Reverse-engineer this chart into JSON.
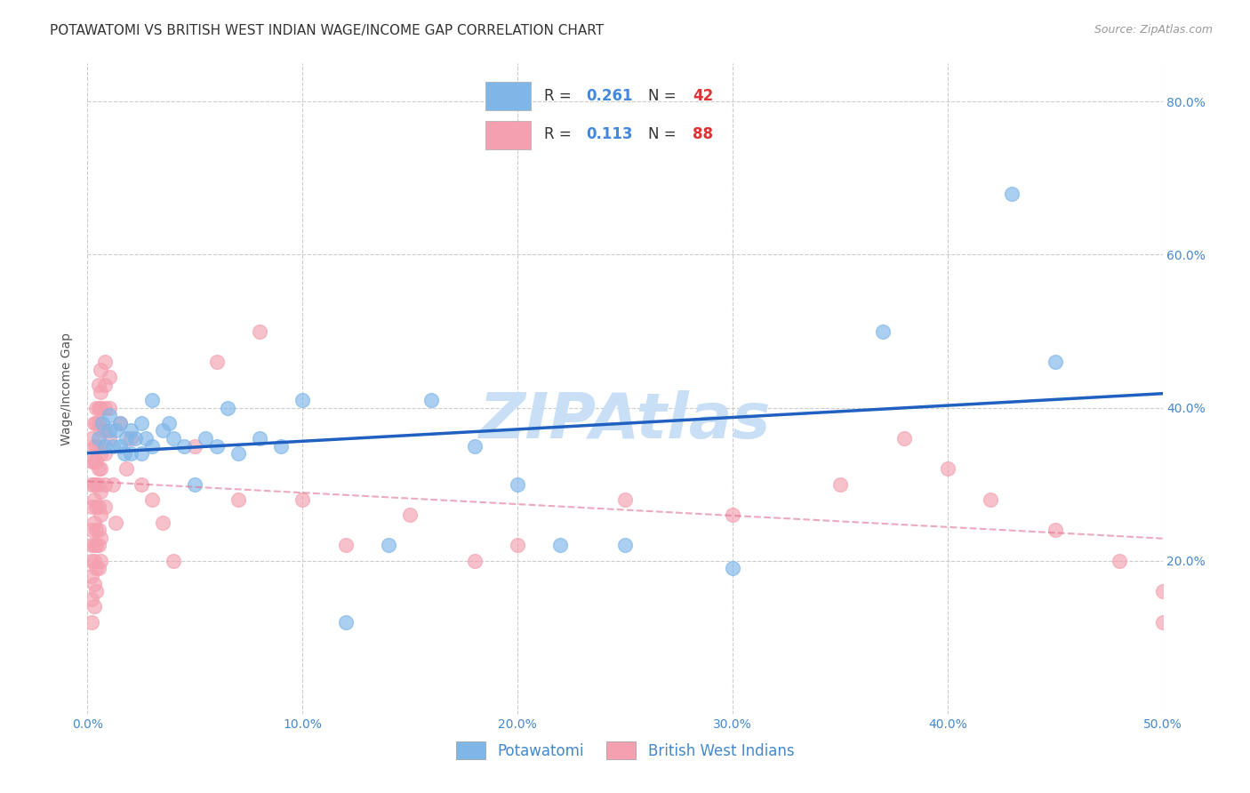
{
  "title": "POTAWATOMI VS BRITISH WEST INDIAN WAGE/INCOME GAP CORRELATION CHART",
  "source": "Source: ZipAtlas.com",
  "ylabel": "Wage/Income Gap",
  "xlim": [
    0.0,
    0.5
  ],
  "ylim": [
    0.0,
    0.85
  ],
  "xticks": [
    0.0,
    0.1,
    0.2,
    0.3,
    0.4,
    0.5
  ],
  "yticks": [
    0.2,
    0.4,
    0.6,
    0.8
  ],
  "potawatomi_R": 0.261,
  "potawatomi_N": 42,
  "bwi_R": 0.113,
  "bwi_N": 88,
  "potawatomi_color": "#7eb6e8",
  "bwi_color": "#f4a0b0",
  "potawatomi_line_color": "#2060c0",
  "bwi_line_color": "#e07090",
  "potawatomi_x": [
    0.005,
    0.007,
    0.008,
    0.01,
    0.01,
    0.012,
    0.013,
    0.015,
    0.015,
    0.017,
    0.018,
    0.02,
    0.02,
    0.022,
    0.025,
    0.025,
    0.027,
    0.03,
    0.03,
    0.035,
    0.038,
    0.04,
    0.045,
    0.05,
    0.055,
    0.06,
    0.065,
    0.07,
    0.08,
    0.09,
    0.1,
    0.12,
    0.14,
    0.16,
    0.18,
    0.2,
    0.22,
    0.25,
    0.3,
    0.37,
    0.43,
    0.45
  ],
  "potawatomi_y": [
    0.36,
    0.38,
    0.35,
    0.37,
    0.39,
    0.35,
    0.37,
    0.35,
    0.38,
    0.34,
    0.36,
    0.34,
    0.37,
    0.36,
    0.38,
    0.34,
    0.36,
    0.35,
    0.41,
    0.37,
    0.38,
    0.36,
    0.35,
    0.3,
    0.36,
    0.35,
    0.4,
    0.34,
    0.36,
    0.35,
    0.41,
    0.12,
    0.22,
    0.41,
    0.35,
    0.3,
    0.22,
    0.22,
    0.19,
    0.5,
    0.68,
    0.46
  ],
  "bwi_x": [
    0.002,
    0.002,
    0.002,
    0.002,
    0.002,
    0.002,
    0.002,
    0.002,
    0.002,
    0.002,
    0.003,
    0.003,
    0.003,
    0.003,
    0.003,
    0.003,
    0.003,
    0.003,
    0.003,
    0.003,
    0.004,
    0.004,
    0.004,
    0.004,
    0.004,
    0.004,
    0.004,
    0.004,
    0.004,
    0.004,
    0.005,
    0.005,
    0.005,
    0.005,
    0.005,
    0.005,
    0.005,
    0.005,
    0.005,
    0.005,
    0.006,
    0.006,
    0.006,
    0.006,
    0.006,
    0.006,
    0.006,
    0.006,
    0.006,
    0.006,
    0.008,
    0.008,
    0.008,
    0.008,
    0.008,
    0.008,
    0.008,
    0.01,
    0.01,
    0.01,
    0.012,
    0.013,
    0.015,
    0.018,
    0.02,
    0.025,
    0.03,
    0.035,
    0.04,
    0.05,
    0.06,
    0.07,
    0.08,
    0.1,
    0.12,
    0.15,
    0.18,
    0.2,
    0.25,
    0.3,
    0.35,
    0.38,
    0.4,
    0.42,
    0.45,
    0.48,
    0.5,
    0.5
  ],
  "bwi_y": [
    0.36,
    0.33,
    0.3,
    0.27,
    0.24,
    0.22,
    0.2,
    0.18,
    0.15,
    0.12,
    0.38,
    0.35,
    0.33,
    0.3,
    0.28,
    0.25,
    0.22,
    0.2,
    0.17,
    0.14,
    0.4,
    0.38,
    0.35,
    0.33,
    0.3,
    0.27,
    0.24,
    0.22,
    0.19,
    0.16,
    0.43,
    0.4,
    0.38,
    0.35,
    0.32,
    0.3,
    0.27,
    0.24,
    0.22,
    0.19,
    0.45,
    0.42,
    0.4,
    0.37,
    0.34,
    0.32,
    0.29,
    0.26,
    0.23,
    0.2,
    0.46,
    0.43,
    0.4,
    0.37,
    0.34,
    0.3,
    0.27,
    0.44,
    0.4,
    0.36,
    0.3,
    0.25,
    0.38,
    0.32,
    0.36,
    0.3,
    0.28,
    0.25,
    0.2,
    0.35,
    0.46,
    0.28,
    0.5,
    0.28,
    0.22,
    0.26,
    0.2,
    0.22,
    0.28,
    0.26,
    0.3,
    0.36,
    0.32,
    0.28,
    0.24,
    0.2,
    0.16,
    0.12
  ],
  "watermark": "ZIPAtlas",
  "watermark_color": "#c8dff5",
  "grid_color": "#cccccc",
  "background_color": "#ffffff",
  "legend_labels": [
    "Potawatomi",
    "British West Indians"
  ],
  "title_fontsize": 11,
  "axis_label_fontsize": 10,
  "tick_fontsize": 10,
  "tick_color": "#4488cc",
  "R_color": "#4488dd",
  "N_color": "#dd3333"
}
